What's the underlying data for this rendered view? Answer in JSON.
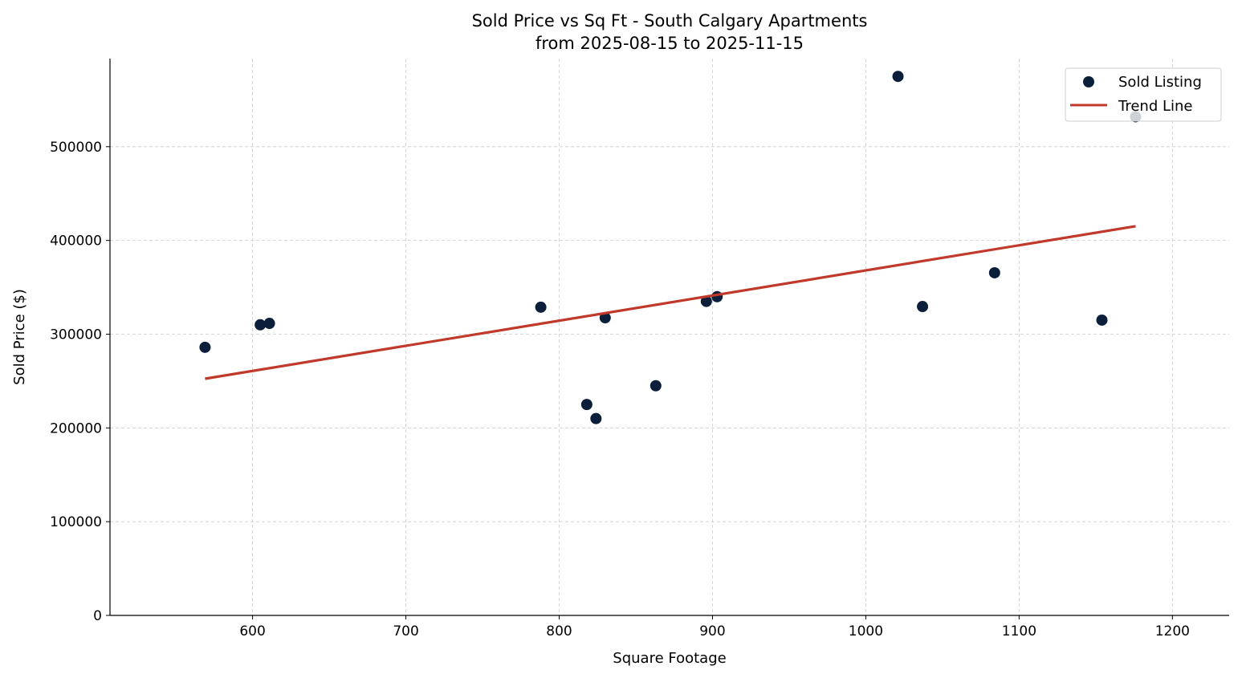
{
  "chart_data": {
    "type": "scatter",
    "title": "Sold Price vs Sq Ft - South Calgary Apartments",
    "subtitle": "from 2025-08-15 to 2025-11-15",
    "xlabel": "Square Footage",
    "ylabel": "Sold Price ($)",
    "xlim": [
      507,
      1237
    ],
    "ylim": [
      0,
      594000
    ],
    "xticks": [
      "600",
      "700",
      "800",
      "900",
      "1000",
      "1100",
      "1200"
    ],
    "yticks": [
      "0",
      "100000",
      "200000",
      "300000",
      "400000",
      "500000"
    ],
    "grid": true,
    "legend_position": "top-right",
    "series": [
      {
        "name": "Sold Listing",
        "kind": "scatter",
        "color": "#0b1f3a",
        "points": [
          [
            569,
            286000
          ],
          [
            605,
            310000
          ],
          [
            611,
            311500
          ],
          [
            788,
            328800
          ],
          [
            818,
            225000
          ],
          [
            824,
            210000
          ],
          [
            830,
            317500
          ],
          [
            863,
            245000
          ],
          [
            896,
            335000
          ],
          [
            903,
            340000
          ],
          [
            1021,
            575000
          ],
          [
            1037,
            329500
          ],
          [
            1084,
            365500
          ],
          [
            1154,
            315000
          ],
          [
            1176,
            532000
          ]
        ]
      },
      {
        "name": "Trend Line",
        "kind": "line",
        "color": "#c0392b",
        "points": [
          [
            569,
            252500
          ],
          [
            1176,
            415200
          ]
        ]
      }
    ]
  }
}
